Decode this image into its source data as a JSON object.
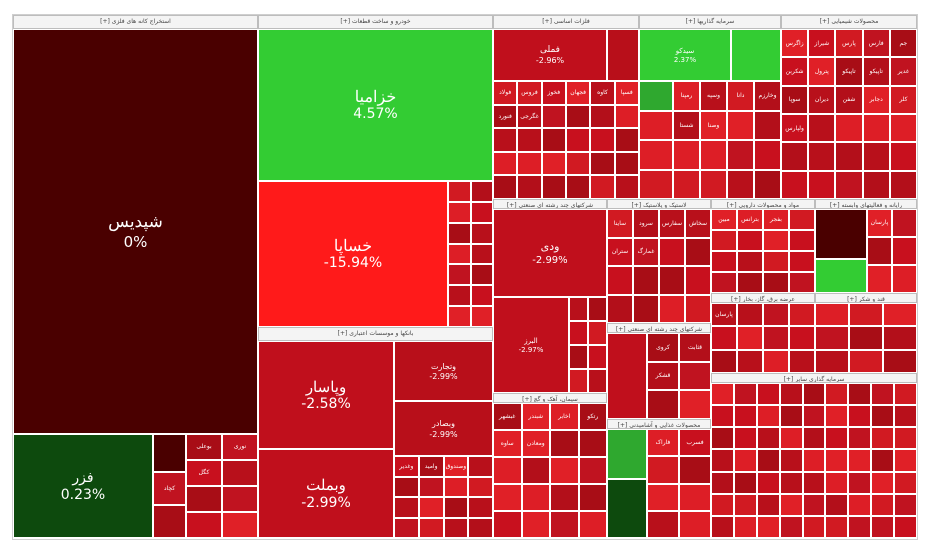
{
  "chart_data": {
    "type": "treemap",
    "sectors": [
      {
        "label": "[+] استخراج کانه های فلزی"
      },
      {
        "label": "[+] خودرو و ساخت قطعات"
      },
      {
        "label": "[+] فلزات اساسی"
      },
      {
        "label": "[+] سرمایه گذاریها"
      },
      {
        "label": "[+] محصولات شیمیایی"
      },
      {
        "label": "[+] بانکها و موسسات اعتباری"
      },
      {
        "label": "[+] سیمان، آهک و گچ"
      },
      {
        "label": "[+] شرکتهای چند رشته ای صنعتی"
      },
      {
        "label": "[+] محصولات غذایی و آشامیدنی"
      },
      {
        "label": "[+] عرضه برق، گاز، بخار"
      },
      {
        "label": "[+] لاستیک و پلاستیک"
      },
      {
        "label": "[+] مواد و محصولات دارویی"
      },
      {
        "label": "[+] رایانه و فعالیتهای وابسته"
      },
      {
        "label": "[+] قند و شکر"
      },
      {
        "label": "[+] سرمایه گذاری سایر"
      }
    ],
    "stocks": [
      {
        "name": "شپدیس",
        "change": "0%"
      },
      {
        "name": "فزر",
        "change": "0.23%"
      },
      {
        "name": "خزامیا",
        "change": "4.57%"
      },
      {
        "name": "خساپا",
        "change": "-15.94%"
      },
      {
        "name": "وپاسار",
        "change": "-2.58%"
      },
      {
        "name": "وبملت",
        "change": "-2.99%"
      },
      {
        "name": "وتجارت",
        "change": "-2.99%"
      },
      {
        "name": "وبصادر",
        "change": "-2.99%"
      },
      {
        "name": "فملی",
        "change": "-2.96%"
      },
      {
        "name": "ودی",
        "change": "-2.99%"
      },
      {
        "name": "البرز",
        "change": "-2.97%"
      },
      {
        "name": "سیدکو",
        "change": "2.37%"
      },
      {
        "name": "فولاد",
        "change": ""
      },
      {
        "name": "فروس",
        "change": ""
      },
      {
        "name": "فخوز",
        "change": ""
      },
      {
        "name": "فجهان",
        "change": ""
      },
      {
        "name": "کاوه",
        "change": ""
      },
      {
        "name": "فسپا",
        "change": ""
      },
      {
        "name": "زاگرس",
        "change": ""
      },
      {
        "name": "شیراز",
        "change": ""
      },
      {
        "name": "پارس",
        "change": ""
      },
      {
        "name": "فارس",
        "change": ""
      },
      {
        "name": "جم",
        "change": ""
      },
      {
        "name": "شکربن",
        "change": ""
      },
      {
        "name": "پترول",
        "change": ""
      },
      {
        "name": "تاپیکو",
        "change": ""
      },
      {
        "name": "بوعلی",
        "change": ""
      },
      {
        "name": "نوری",
        "change": ""
      },
      {
        "name": "کگل",
        "change": ""
      },
      {
        "name": "کچاد",
        "change": ""
      },
      {
        "name": "وغدیر",
        "change": ""
      },
      {
        "name": "وامید",
        "change": ""
      },
      {
        "name": "وصندوق",
        "change": ""
      },
      {
        "name": "رمپنا",
        "change": ""
      },
      {
        "name": "وسپه",
        "change": ""
      },
      {
        "name": "دانا",
        "change": ""
      },
      {
        "name": "وخارزم",
        "change": ""
      },
      {
        "name": "شستا",
        "change": ""
      },
      {
        "name": "وصنا",
        "change": ""
      },
      {
        "name": "تاپیکو",
        "change": ""
      },
      {
        "name": "غدیر",
        "change": ""
      },
      {
        "name": "مبین",
        "change": ""
      },
      {
        "name": "بترانس",
        "change": ""
      },
      {
        "name": "بفجر",
        "change": ""
      },
      {
        "name": "پارسان",
        "change": ""
      },
      {
        "name": "سوپا",
        "change": ""
      },
      {
        "name": "دیران",
        "change": ""
      },
      {
        "name": "شفن",
        "change": ""
      },
      {
        "name": "دجابر",
        "change": ""
      },
      {
        "name": "کلر",
        "change": ""
      },
      {
        "name": "ولپارس",
        "change": ""
      },
      {
        "name": "ساینا",
        "change": ""
      },
      {
        "name": "سرود",
        "change": ""
      },
      {
        "name": "سفارس",
        "change": ""
      },
      {
        "name": "سخاش",
        "change": ""
      },
      {
        "name": "ستران",
        "change": ""
      },
      {
        "name": "غمارگ",
        "change": ""
      },
      {
        "name": "غبشهر",
        "change": ""
      },
      {
        "name": "شبندر",
        "change": ""
      },
      {
        "name": "اخابر",
        "change": ""
      },
      {
        "name": "رتکو",
        "change": ""
      },
      {
        "name": "ساوه",
        "change": ""
      },
      {
        "name": "ومعادن",
        "change": ""
      },
      {
        "name": "کروی",
        "change": ""
      },
      {
        "name": "قثابت",
        "change": ""
      },
      {
        "name": "قشکر",
        "change": ""
      },
      {
        "name": "فاراک",
        "change": ""
      },
      {
        "name": "فسرب",
        "change": ""
      },
      {
        "name": "فنورد",
        "change": ""
      },
      {
        "name": "غگرجی",
        "change": ""
      }
    ],
    "colors": {
      "up_strong": "#33cc33",
      "up_mild": "#2fa82f",
      "dark_green": "#0d4a0d",
      "flat": "#4a0000",
      "down_mild": "#c8101e",
      "down_strong": "#ff1a1a",
      "header_bg": "#f4f4f4"
    }
  }
}
